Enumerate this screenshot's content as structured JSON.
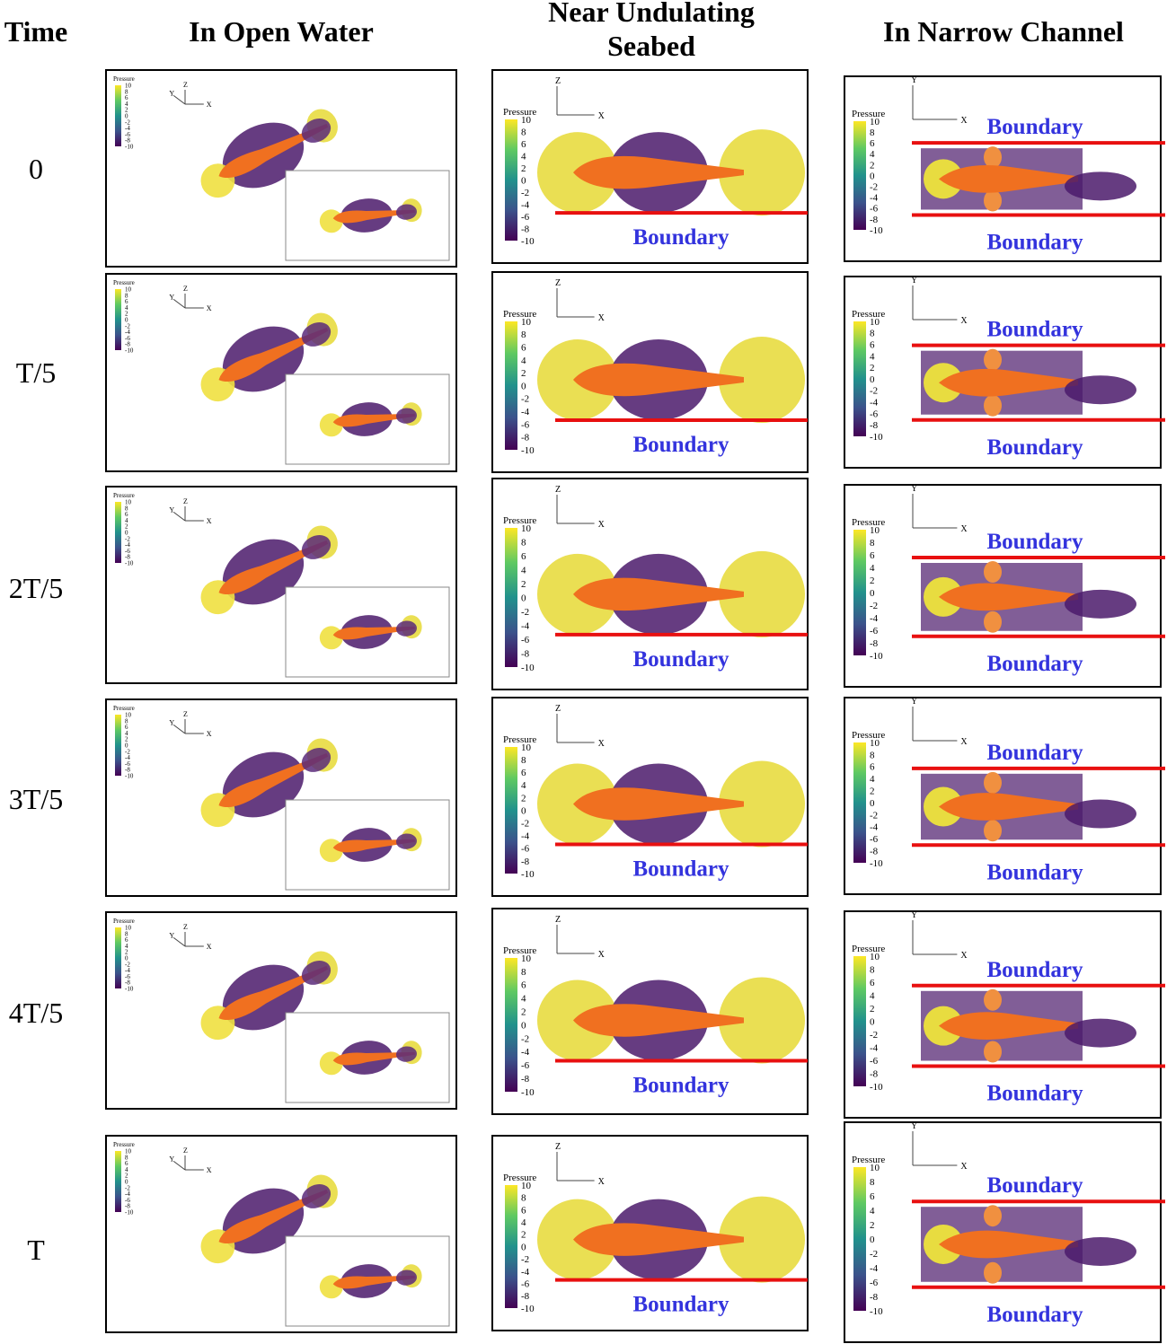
{
  "header": {
    "time": "Time",
    "columns": [
      "In Open Water",
      "Near Undulating Seabed",
      "In Narrow Channel"
    ]
  },
  "rows": [
    "0",
    "T/5",
    "2T/5",
    "3T/5",
    "4T/5",
    "T"
  ],
  "colorbar": {
    "title": "Pressure",
    "ticks": [
      10,
      8,
      6,
      4,
      2,
      0,
      -2,
      -4,
      -6,
      -8,
      -10
    ]
  },
  "boundary": "Boundary",
  "axes": {
    "open": [
      "Y",
      "Z",
      "X"
    ],
    "seabed": [
      "Z",
      "X"
    ],
    "channel": [
      "Y",
      "X"
    ]
  }
}
